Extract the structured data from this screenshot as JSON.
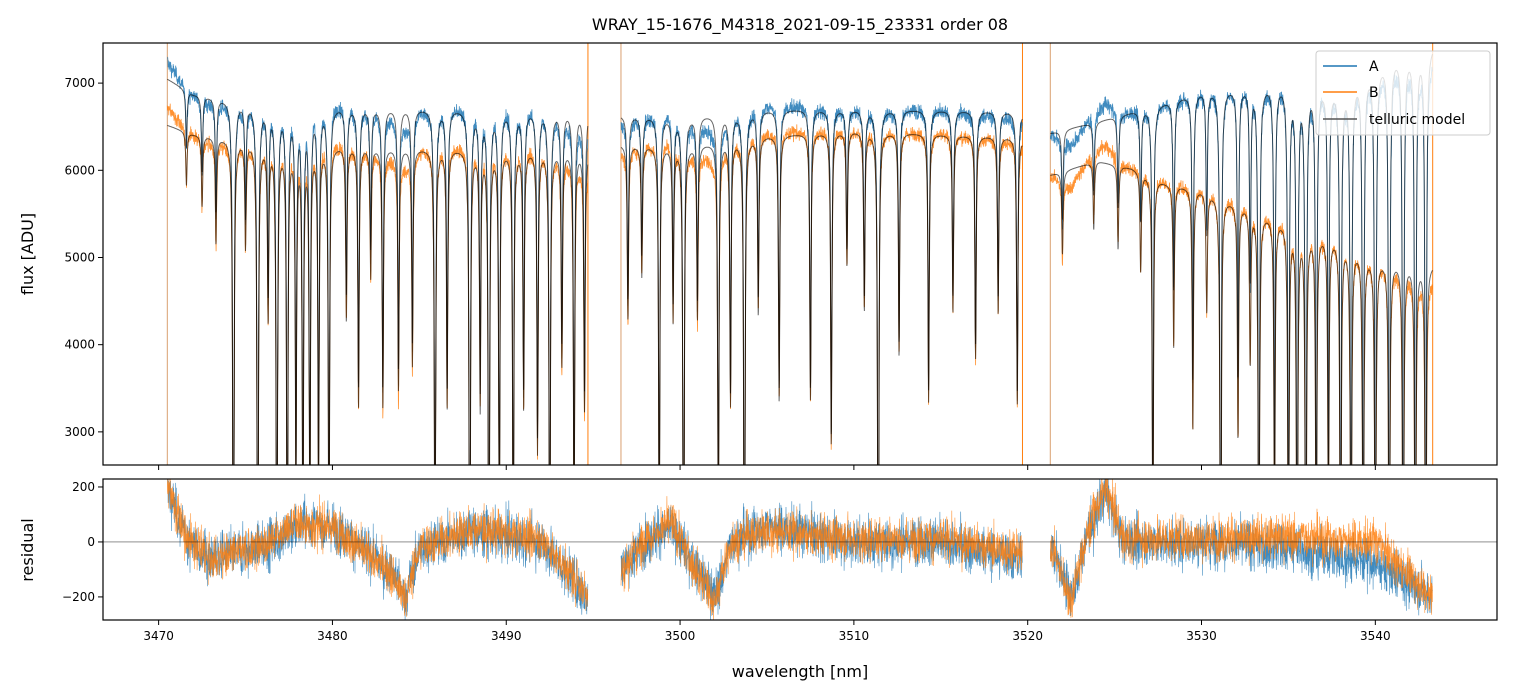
{
  "chart_data": [
    {
      "type": "line",
      "title": "WRAY_15-1676_M4318_2021-09-15_23331  order 08",
      "xlabel": "",
      "ylabel": "flux [ADU]",
      "xlim": [
        3466.8,
        3547.0
      ],
      "ylim": [
        2620,
        7460
      ],
      "yticks": [
        "3000",
        "4000",
        "5000",
        "6000",
        "7000"
      ],
      "legend_position": "top-right",
      "grid": false,
      "colors": {
        "A": "#1f77b4",
        "B": "#ff7f0e",
        "telluric model": "#555555"
      },
      "series": [
        {
          "name": "A",
          "continuum": [
            [
              3470.5,
              7050
            ],
            [
              3472,
              6880
            ],
            [
              3476,
              6760
            ],
            [
              3485,
              6720
            ],
            [
              3494.6,
              6700
            ],
            [
              3496.6,
              6640
            ],
            [
              3500,
              6620
            ],
            [
              3505,
              6700
            ],
            [
              3510,
              6710
            ],
            [
              3519.6,
              6680
            ],
            [
              3521.3,
              6430
            ],
            [
              3524,
              6560
            ],
            [
              3527,
              6730
            ],
            [
              3530,
              6920
            ],
            [
              3535,
              7020
            ],
            [
              3538,
              6980
            ],
            [
              3541,
              7350
            ],
            [
              3543.3,
              7450
            ]
          ]
        },
        {
          "name": "B",
          "continuum": [
            [
              3470.5,
              6520
            ],
            [
              3472,
              6420
            ],
            [
              3476,
              6320
            ],
            [
              3485,
              6260
            ],
            [
              3494.6,
              6240
            ],
            [
              3496.6,
              6300
            ],
            [
              3500,
              6280
            ],
            [
              3505,
              6400
            ],
            [
              3510,
              6460
            ],
            [
              3519.6,
              6380
            ],
            [
              3521.3,
              5950
            ],
            [
              3524,
              6110
            ],
            [
              3526,
              6030
            ],
            [
              3528,
              5860
            ],
            [
              3530,
              5780
            ],
            [
              3533,
              5560
            ],
            [
              3536,
              5330
            ],
            [
              3538,
              5230
            ],
            [
              3540,
              5000
            ],
            [
              3543.3,
              4930
            ]
          ]
        },
        {
          "name": "telluric model",
          "fits": [
            "A",
            "B"
          ]
        }
      ],
      "gaps_nm": [
        [
          3494.7,
          3496.6
        ],
        [
          3519.7,
          3521.3
        ]
      ],
      "telluric_lines": [
        {
          "center": 3471.6,
          "depth": 0.06
        },
        {
          "center": 3472.5,
          "depth": 0.08
        },
        {
          "center": 3473.3,
          "depth": 0.12
        },
        {
          "center": 3474.3,
          "depth": 1.0
        },
        {
          "center": 3475.0,
          "depth": 0.12
        },
        {
          "center": 3475.7,
          "depth": 0.95
        },
        {
          "center": 3476.3,
          "depth": 0.2
        },
        {
          "center": 3476.8,
          "depth": 1.0
        },
        {
          "center": 3477.4,
          "depth": 0.55
        },
        {
          "center": 3477.9,
          "depth": 0.4
        },
        {
          "center": 3478.3,
          "depth": 0.5
        },
        {
          "center": 3478.7,
          "depth": 0.45
        },
        {
          "center": 3479.2,
          "depth": 0.4
        },
        {
          "center": 3479.8,
          "depth": 0.5
        },
        {
          "center": 3480.8,
          "depth": 0.2
        },
        {
          "center": 3481.5,
          "depth": 0.3
        },
        {
          "center": 3482.2,
          "depth": 0.15
        },
        {
          "center": 3482.9,
          "depth": 0.3
        },
        {
          "center": 3483.8,
          "depth": 0.28
        },
        {
          "center": 3484.6,
          "depth": 0.25
        },
        {
          "center": 3485.9,
          "depth": 0.55
        },
        {
          "center": 3486.6,
          "depth": 0.3
        },
        {
          "center": 3487.9,
          "depth": 1.0
        },
        {
          "center": 3488.5,
          "depth": 0.3
        },
        {
          "center": 3489.0,
          "depth": 1.0
        },
        {
          "center": 3489.6,
          "depth": 0.45
        },
        {
          "center": 3490.4,
          "depth": 0.5
        },
        {
          "center": 3491.0,
          "depth": 0.3
        },
        {
          "center": 3491.8,
          "depth": 0.35
        },
        {
          "center": 3492.5,
          "depth": 0.55
        },
        {
          "center": 3493.2,
          "depth": 0.25
        },
        {
          "center": 3493.9,
          "depth": 0.45
        },
        {
          "center": 3494.5,
          "depth": 0.3
        },
        {
          "center": 3497.0,
          "depth": 0.2
        },
        {
          "center": 3497.8,
          "depth": 0.15
        },
        {
          "center": 3498.8,
          "depth": 0.45
        },
        {
          "center": 3499.6,
          "depth": 0.2
        },
        {
          "center": 3500.2,
          "depth": 1.0
        },
        {
          "center": 3501.0,
          "depth": 0.2
        },
        {
          "center": 3502.2,
          "depth": 0.45
        },
        {
          "center": 3502.9,
          "depth": 0.3
        },
        {
          "center": 3503.7,
          "depth": 1.0
        },
        {
          "center": 3504.5,
          "depth": 0.2
        },
        {
          "center": 3505.7,
          "depth": 0.3
        },
        {
          "center": 3507.5,
          "depth": 0.3
        },
        {
          "center": 3508.7,
          "depth": 0.35
        },
        {
          "center": 3509.6,
          "depth": 0.15
        },
        {
          "center": 3510.6,
          "depth": 0.2
        },
        {
          "center": 3511.4,
          "depth": 1.0
        },
        {
          "center": 3512.6,
          "depth": 0.25
        },
        {
          "center": 3514.3,
          "depth": 0.3
        },
        {
          "center": 3515.7,
          "depth": 0.2
        },
        {
          "center": 3517.0,
          "depth": 0.25
        },
        {
          "center": 3518.3,
          "depth": 0.2
        },
        {
          "center": 3519.4,
          "depth": 0.3
        },
        {
          "center": 3522.0,
          "depth": 0.1
        },
        {
          "center": 3523.8,
          "depth": 0.08
        },
        {
          "center": 3525.2,
          "depth": 0.1
        },
        {
          "center": 3526.5,
          "depth": 0.12
        },
        {
          "center": 3527.2,
          "depth": 0.45
        },
        {
          "center": 3528.4,
          "depth": 0.2
        },
        {
          "center": 3529.5,
          "depth": 0.3
        },
        {
          "center": 3530.3,
          "depth": 0.15
        },
        {
          "center": 3531.1,
          "depth": 0.9
        },
        {
          "center": 3532.1,
          "depth": 0.3
        },
        {
          "center": 3532.8,
          "depth": 0.2
        },
        {
          "center": 3533.3,
          "depth": 0.85
        },
        {
          "center": 3534.2,
          "depth": 0.4
        },
        {
          "center": 3535.0,
          "depth": 0.55
        },
        {
          "center": 3535.5,
          "depth": 1.0
        },
        {
          "center": 3536.0,
          "depth": 1.0
        },
        {
          "center": 3536.6,
          "depth": 0.5
        },
        {
          "center": 3537.3,
          "depth": 0.4
        },
        {
          "center": 3538.0,
          "depth": 0.6
        },
        {
          "center": 3538.6,
          "depth": 1.0
        },
        {
          "center": 3539.3,
          "depth": 0.6
        },
        {
          "center": 3540.0,
          "depth": 0.7
        },
        {
          "center": 3540.8,
          "depth": 0.9
        },
        {
          "center": 3541.6,
          "depth": 0.7
        },
        {
          "center": 3542.3,
          "depth": 1.0
        },
        {
          "center": 3542.9,
          "depth": 0.6
        }
      ]
    },
    {
      "type": "line",
      "xlabel": "wavelength [nm]",
      "ylabel": "residual",
      "xlim": [
        3466.8,
        3547.0
      ],
      "ylim": [
        -284,
        229
      ],
      "xticks": [
        "3470",
        "3480",
        "3490",
        "3500",
        "3510",
        "3520",
        "3530",
        "3540"
      ],
      "yticks": [
        "-200",
        "0",
        "200"
      ],
      "zero_line": 0,
      "series": [
        {
          "name": "A",
          "trend": [
            [
              3470.5,
              200
            ],
            [
              3471.5,
              20
            ],
            [
              3473,
              -60
            ],
            [
              3476,
              -20
            ],
            [
              3478,
              60
            ],
            [
              3480,
              60
            ],
            [
              3482,
              -40
            ],
            [
              3483.5,
              -120
            ],
            [
              3484.2,
              -200
            ],
            [
              3485,
              -30
            ],
            [
              3488,
              40
            ],
            [
              3492,
              0
            ],
            [
              3494.6,
              -200
            ],
            [
              3496.6,
              -100
            ],
            [
              3498,
              0
            ],
            [
              3499.5,
              60
            ],
            [
              3500.5,
              -60
            ],
            [
              3502,
              -200
            ],
            [
              3503,
              0
            ],
            [
              3505,
              60
            ],
            [
              3510,
              0
            ],
            [
              3515,
              0
            ],
            [
              3519.6,
              -60
            ],
            [
              3521.3,
              0
            ],
            [
              3522.5,
              -200
            ],
            [
              3523.5,
              40
            ],
            [
              3524.5,
              180
            ],
            [
              3525.5,
              0
            ],
            [
              3530,
              0
            ],
            [
              3535,
              -20
            ],
            [
              3540,
              -80
            ],
            [
              3543.3,
              -200
            ]
          ]
        },
        {
          "name": "B",
          "trend": [
            [
              3470.5,
              200
            ],
            [
              3471.5,
              30
            ],
            [
              3473,
              -70
            ],
            [
              3476,
              -10
            ],
            [
              3478,
              70
            ],
            [
              3480,
              50
            ],
            [
              3482,
              -40
            ],
            [
              3483.5,
              -120
            ],
            [
              3484.2,
              -210
            ],
            [
              3485,
              -20
            ],
            [
              3488,
              50
            ],
            [
              3492,
              10
            ],
            [
              3494.6,
              -180
            ],
            [
              3496.6,
              -110
            ],
            [
              3498,
              10
            ],
            [
              3499.5,
              70
            ],
            [
              3500.5,
              -50
            ],
            [
              3502,
              -220
            ],
            [
              3503,
              10
            ],
            [
              3505,
              40
            ],
            [
              3510,
              10
            ],
            [
              3515,
              10
            ],
            [
              3519.6,
              -40
            ],
            [
              3521.3,
              0
            ],
            [
              3522.5,
              -220
            ],
            [
              3523.5,
              50
            ],
            [
              3524.5,
              200
            ],
            [
              3525.5,
              10
            ],
            [
              3530,
              10
            ],
            [
              3535,
              20
            ],
            [
              3540,
              0
            ],
            [
              3543.3,
              -200
            ]
          ]
        }
      ]
    }
  ]
}
